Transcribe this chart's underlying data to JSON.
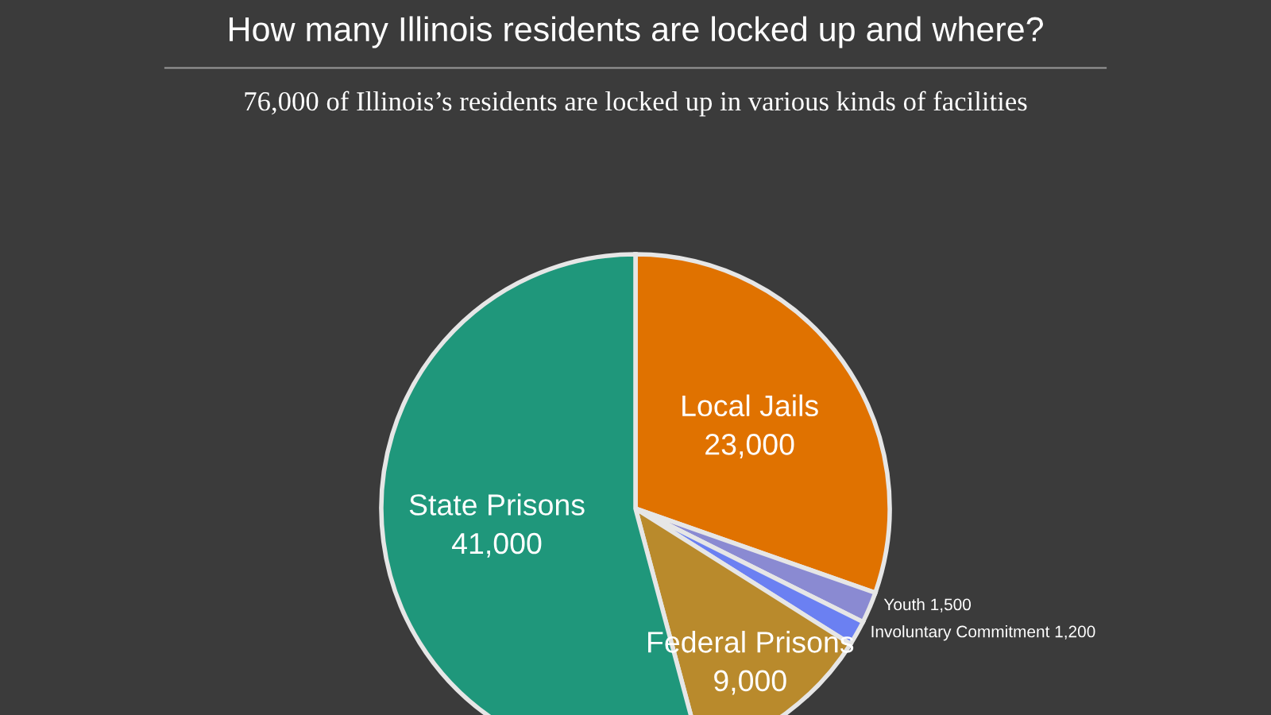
{
  "chart_data": {
    "type": "pie",
    "title": "How many Illinois residents are locked up and where?",
    "subtitle": "76,000 of Illinois’s residents are locked up in various kinds of facilities",
    "categories": [
      "Local Jails",
      "Youth",
      "Involuntary Commitment",
      "Federal Prisons",
      "State Prisons"
    ],
    "values": [
      23000,
      1500,
      1200,
      9000,
      41000
    ],
    "value_labels": [
      "23,000",
      "1,500",
      "1,200",
      "9,000",
      "41,000"
    ],
    "colors": [
      "#e07200",
      "#8a8ad2",
      "#6b80f2",
      "#b98a2c",
      "#1f977b"
    ]
  }
}
